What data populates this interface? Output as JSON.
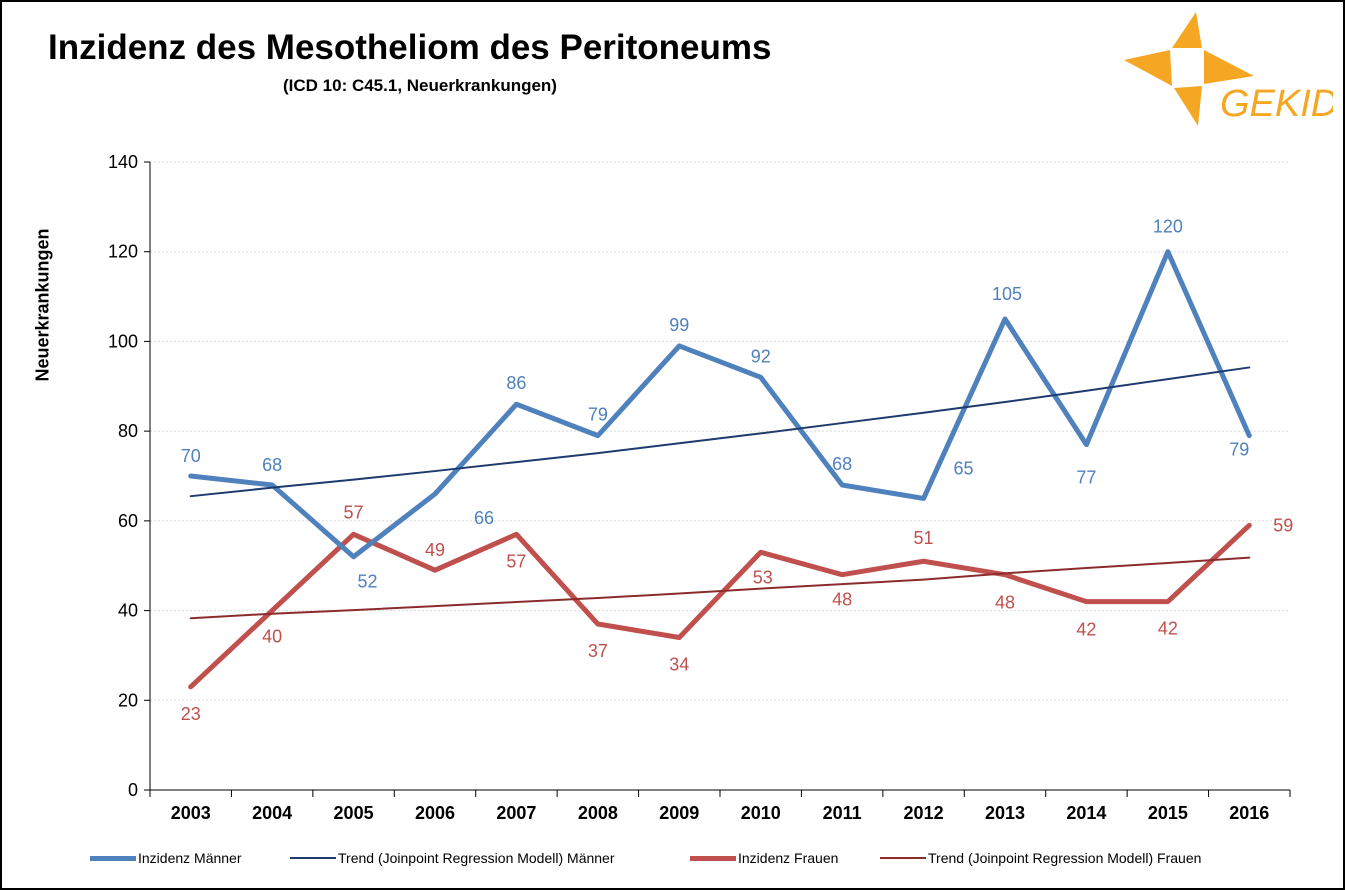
{
  "chart_data": {
    "type": "line",
    "title": "Inzidenz des Mesotheliom des Peritoneums",
    "subtitle": "(ICD 10: C45.1, Neuerkrankungen)",
    "xlabel": "",
    "ylabel": "Neuerkrankungen",
    "ylim": [
      0,
      140
    ],
    "yticks": [
      0,
      20,
      40,
      60,
      80,
      100,
      120,
      140
    ],
    "categories": [
      "2003",
      "2004",
      "2005",
      "2006",
      "2007",
      "2008",
      "2009",
      "2010",
      "2011",
      "2012",
      "2013",
      "2014",
      "2015",
      "2016"
    ],
    "series": [
      {
        "name": "Inzidenz Männer",
        "color": "#4F81BD",
        "labelColor": "#4F81BD",
        "values": [
          70,
          68,
          52,
          66,
          86,
          79,
          99,
          92,
          68,
          65,
          105,
          77,
          120,
          79
        ],
        "labels": [
          "70",
          "68",
          "52",
          "66",
          "86",
          "79",
          "99",
          "92",
          "68",
          "65",
          "105",
          "77",
          "120",
          "79"
        ]
      },
      {
        "name": "Trend (Joinpoint Regression Modell) Männer",
        "color": "#1F3B6E",
        "values": [
          65.5,
          67.4,
          69.2,
          71.1,
          73.1,
          75.1,
          77.3,
          79.5,
          81.8,
          84.1,
          86.5,
          89.0,
          91.6,
          94.2
        ]
      },
      {
        "name": "Inzidenz Frauen",
        "color": "#C0504D",
        "labelColor": "#C0504D",
        "values": [
          23,
          40,
          57,
          49,
          57,
          37,
          34,
          53,
          48,
          51,
          48,
          42,
          42,
          59
        ],
        "labels": [
          "23",
          "40",
          "57",
          "49",
          "57",
          "37",
          "34",
          "53",
          "48",
          "51",
          "48",
          "42",
          "42",
          "59"
        ]
      },
      {
        "name": "Trend (Joinpoint Regression Modell) Frauen",
        "color": "#8B2C2C",
        "values": [
          38.3,
          39.3,
          40.1,
          41.0,
          41.9,
          42.8,
          43.8,
          44.9,
          45.9,
          46.9,
          48.3,
          49.5,
          50.6,
          51.8
        ]
      }
    ]
  },
  "logo": {
    "text": "GEKID",
    "color": "#F5A623"
  }
}
